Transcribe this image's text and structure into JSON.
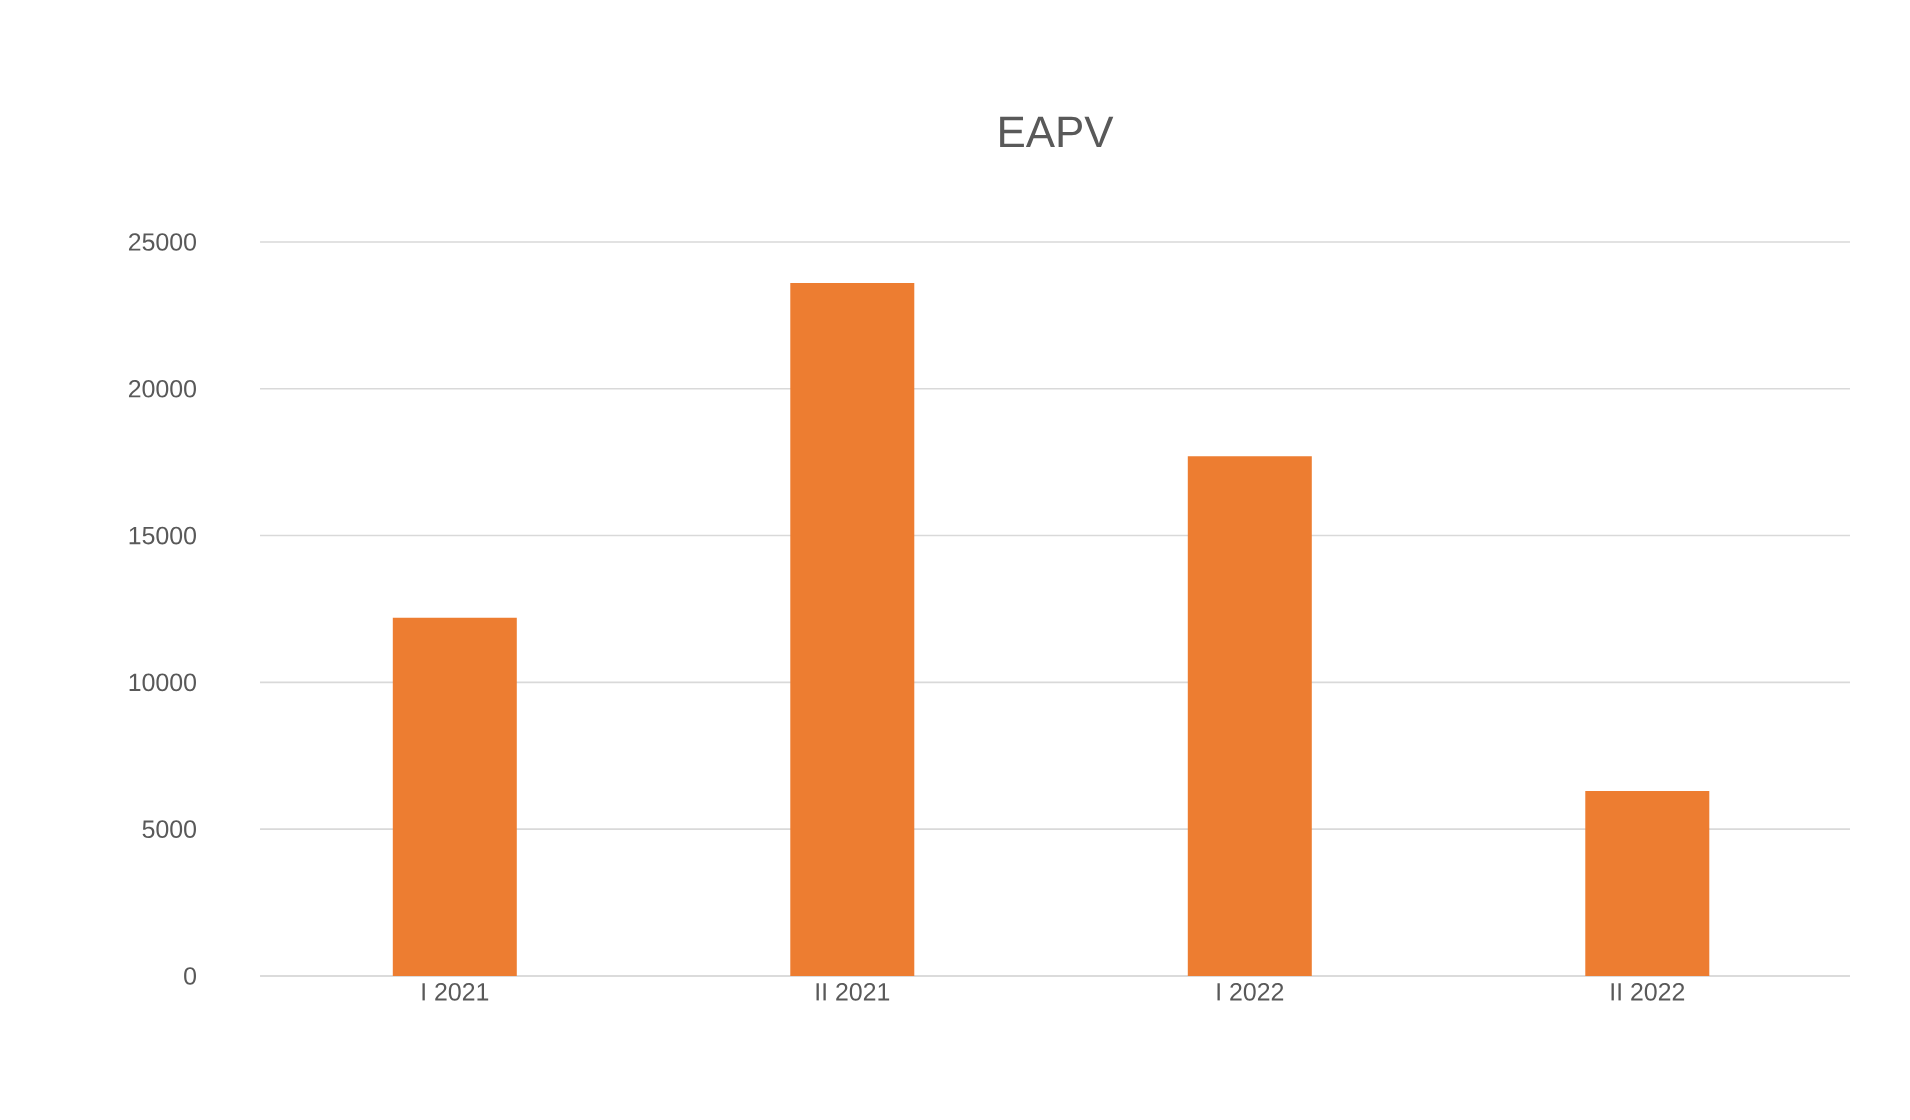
{
  "chart_data": {
    "type": "bar",
    "title": "EAPV",
    "categories": [
      "I 2021",
      "II 2021",
      "I 2022",
      "II 2022"
    ],
    "values": [
      12200,
      23600,
      17700,
      6300
    ],
    "color": "#ed7d31",
    "ylim": [
      0,
      25000
    ],
    "yticks": [
      0,
      5000,
      10000,
      15000,
      20000,
      25000
    ],
    "grid": "y"
  }
}
